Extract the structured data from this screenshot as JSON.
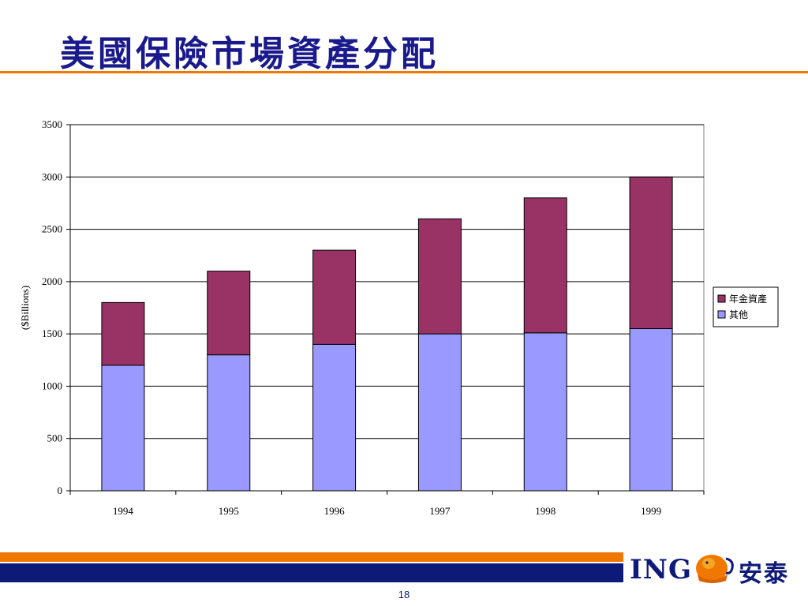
{
  "slide": {
    "title": "美國保險市場資產分配",
    "page_number": "18"
  },
  "logo": {
    "brand": "ING",
    "chinese_name": "安泰",
    "icon": "lion-icon"
  },
  "colors": {
    "title": "#1a1a8c",
    "accent_orange": "#f07800",
    "footer_navy": "#0d1a78",
    "annuity_series": "#993366",
    "other_series": "#9999ff"
  },
  "chart_data": {
    "type": "bar",
    "stacked": true,
    "title": "",
    "xlabel": "",
    "ylabel": "($Billions)",
    "categories": [
      "1994",
      "1995",
      "1996",
      "1997",
      "1998",
      "1999"
    ],
    "series": [
      {
        "name": "其他",
        "color": "#9999ff",
        "values": [
          1200,
          1300,
          1400,
          1500,
          1510,
          1550
        ]
      },
      {
        "name": "年金資產",
        "color": "#993366",
        "values": [
          600,
          800,
          900,
          1100,
          1290,
          1450
        ]
      }
    ],
    "legend_order": [
      "年金資產",
      "其他"
    ],
    "ylim": [
      0,
      3500
    ],
    "yticks": [
      0,
      500,
      1000,
      1500,
      2000,
      2500,
      3000,
      3500
    ],
    "grid": true,
    "legend_position": "right"
  }
}
